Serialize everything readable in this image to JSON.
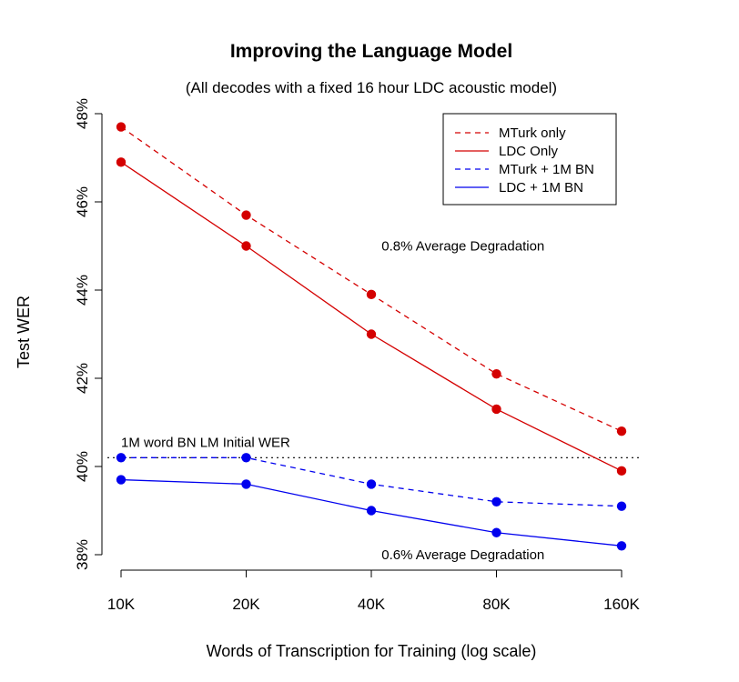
{
  "chart_data": {
    "type": "line",
    "title": "Improving the Language Model",
    "subtitle": "(All decodes with a fixed 16 hour LDC acoustic model)",
    "xlabel": "Words of Transcription for Training (log scale)",
    "ylabel": "Test WER",
    "x_scale": "log",
    "categories": [
      "10K",
      "20K",
      "40K",
      "80K",
      "160K"
    ],
    "x": [
      10000,
      20000,
      40000,
      80000,
      160000
    ],
    "ylim": [
      38,
      48
    ],
    "y_ticks": [
      38,
      40,
      42,
      44,
      46,
      48
    ],
    "y_tick_labels": [
      "38%",
      "40%",
      "42%",
      "44%",
      "46%",
      "48%"
    ],
    "grid": false,
    "legend_position": "top-right",
    "series": [
      {
        "name": "MTurk only",
        "color": "#d40000",
        "dash": "dashed",
        "values": [
          47.7,
          45.7,
          43.9,
          42.1,
          40.8
        ]
      },
      {
        "name": "LDC Only",
        "color": "#d40000",
        "dash": "solid",
        "values": [
          46.9,
          45.0,
          43.0,
          41.3,
          39.9
        ]
      },
      {
        "name": "MTurk + 1M BN",
        "color": "#0000ee",
        "dash": "dashed",
        "values": [
          40.2,
          40.2,
          39.6,
          39.2,
          39.1
        ]
      },
      {
        "name": "LDC + 1M BN",
        "color": "#0000ee",
        "dash": "solid",
        "values": [
          39.7,
          39.6,
          39.0,
          38.5,
          38.2
        ]
      }
    ],
    "reference_line": {
      "label": "1M word BN LM Initial WER",
      "y": 40.2,
      "style": "dotted"
    },
    "annotations": [
      {
        "text": "0.8% Average Degradation",
        "x": 28284,
        "y": 45.0
      },
      {
        "text": "0.6% Average Degradation",
        "x": 28284,
        "y": 38.0
      }
    ]
  }
}
